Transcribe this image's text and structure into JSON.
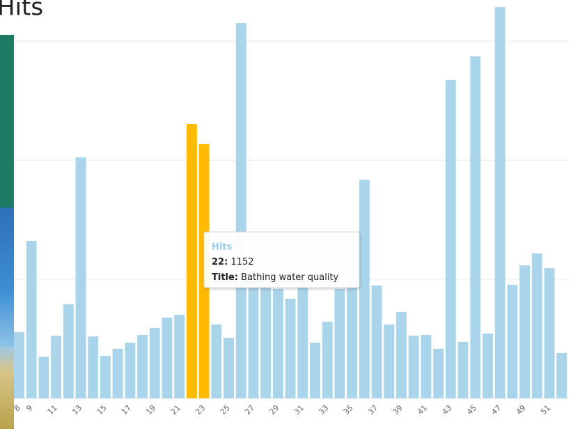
{
  "chart_data": {
    "type": "bar",
    "title": "Hits",
    "categories": [
      8,
      9,
      null,
      11,
      null,
      13,
      null,
      15,
      null,
      17,
      null,
      19,
      null,
      21,
      null,
      23,
      null,
      25,
      null,
      27,
      null,
      29,
      null,
      31,
      null,
      33,
      null,
      35,
      null,
      37,
      null,
      39,
      null,
      41,
      null,
      43,
      null,
      45,
      null,
      47,
      null,
      49,
      null,
      51,
      null
    ],
    "series": [
      {
        "name": "Hits",
        "color": "#a9d4ea",
        "values": [
          278,
          661,
          175,
          263,
          395,
          1012,
          260,
          178,
          208,
          234,
          266,
          295,
          339,
          351,
          1152,
          1067,
          310,
          254,
          1576,
          532,
          474,
          459,
          418,
          474,
          234,
          322,
          459,
          503,
          918,
          474,
          310,
          363,
          263,
          266,
          208,
          1336,
          237,
          1436,
          272,
          1643,
          477,
          558,
          608,
          547,
          190
        ]
      }
    ],
    "highlight_color": "#ffbb00",
    "highlighted": [
      14,
      15
    ],
    "ylim": [
      0,
      1650
    ],
    "yticks": [
      0,
      500,
      1000,
      1500
    ],
    "grid": true,
    "tooltip": {
      "key": "22:",
      "title_label": "Title:",
      "title": "Bathing water quality"
    }
  }
}
